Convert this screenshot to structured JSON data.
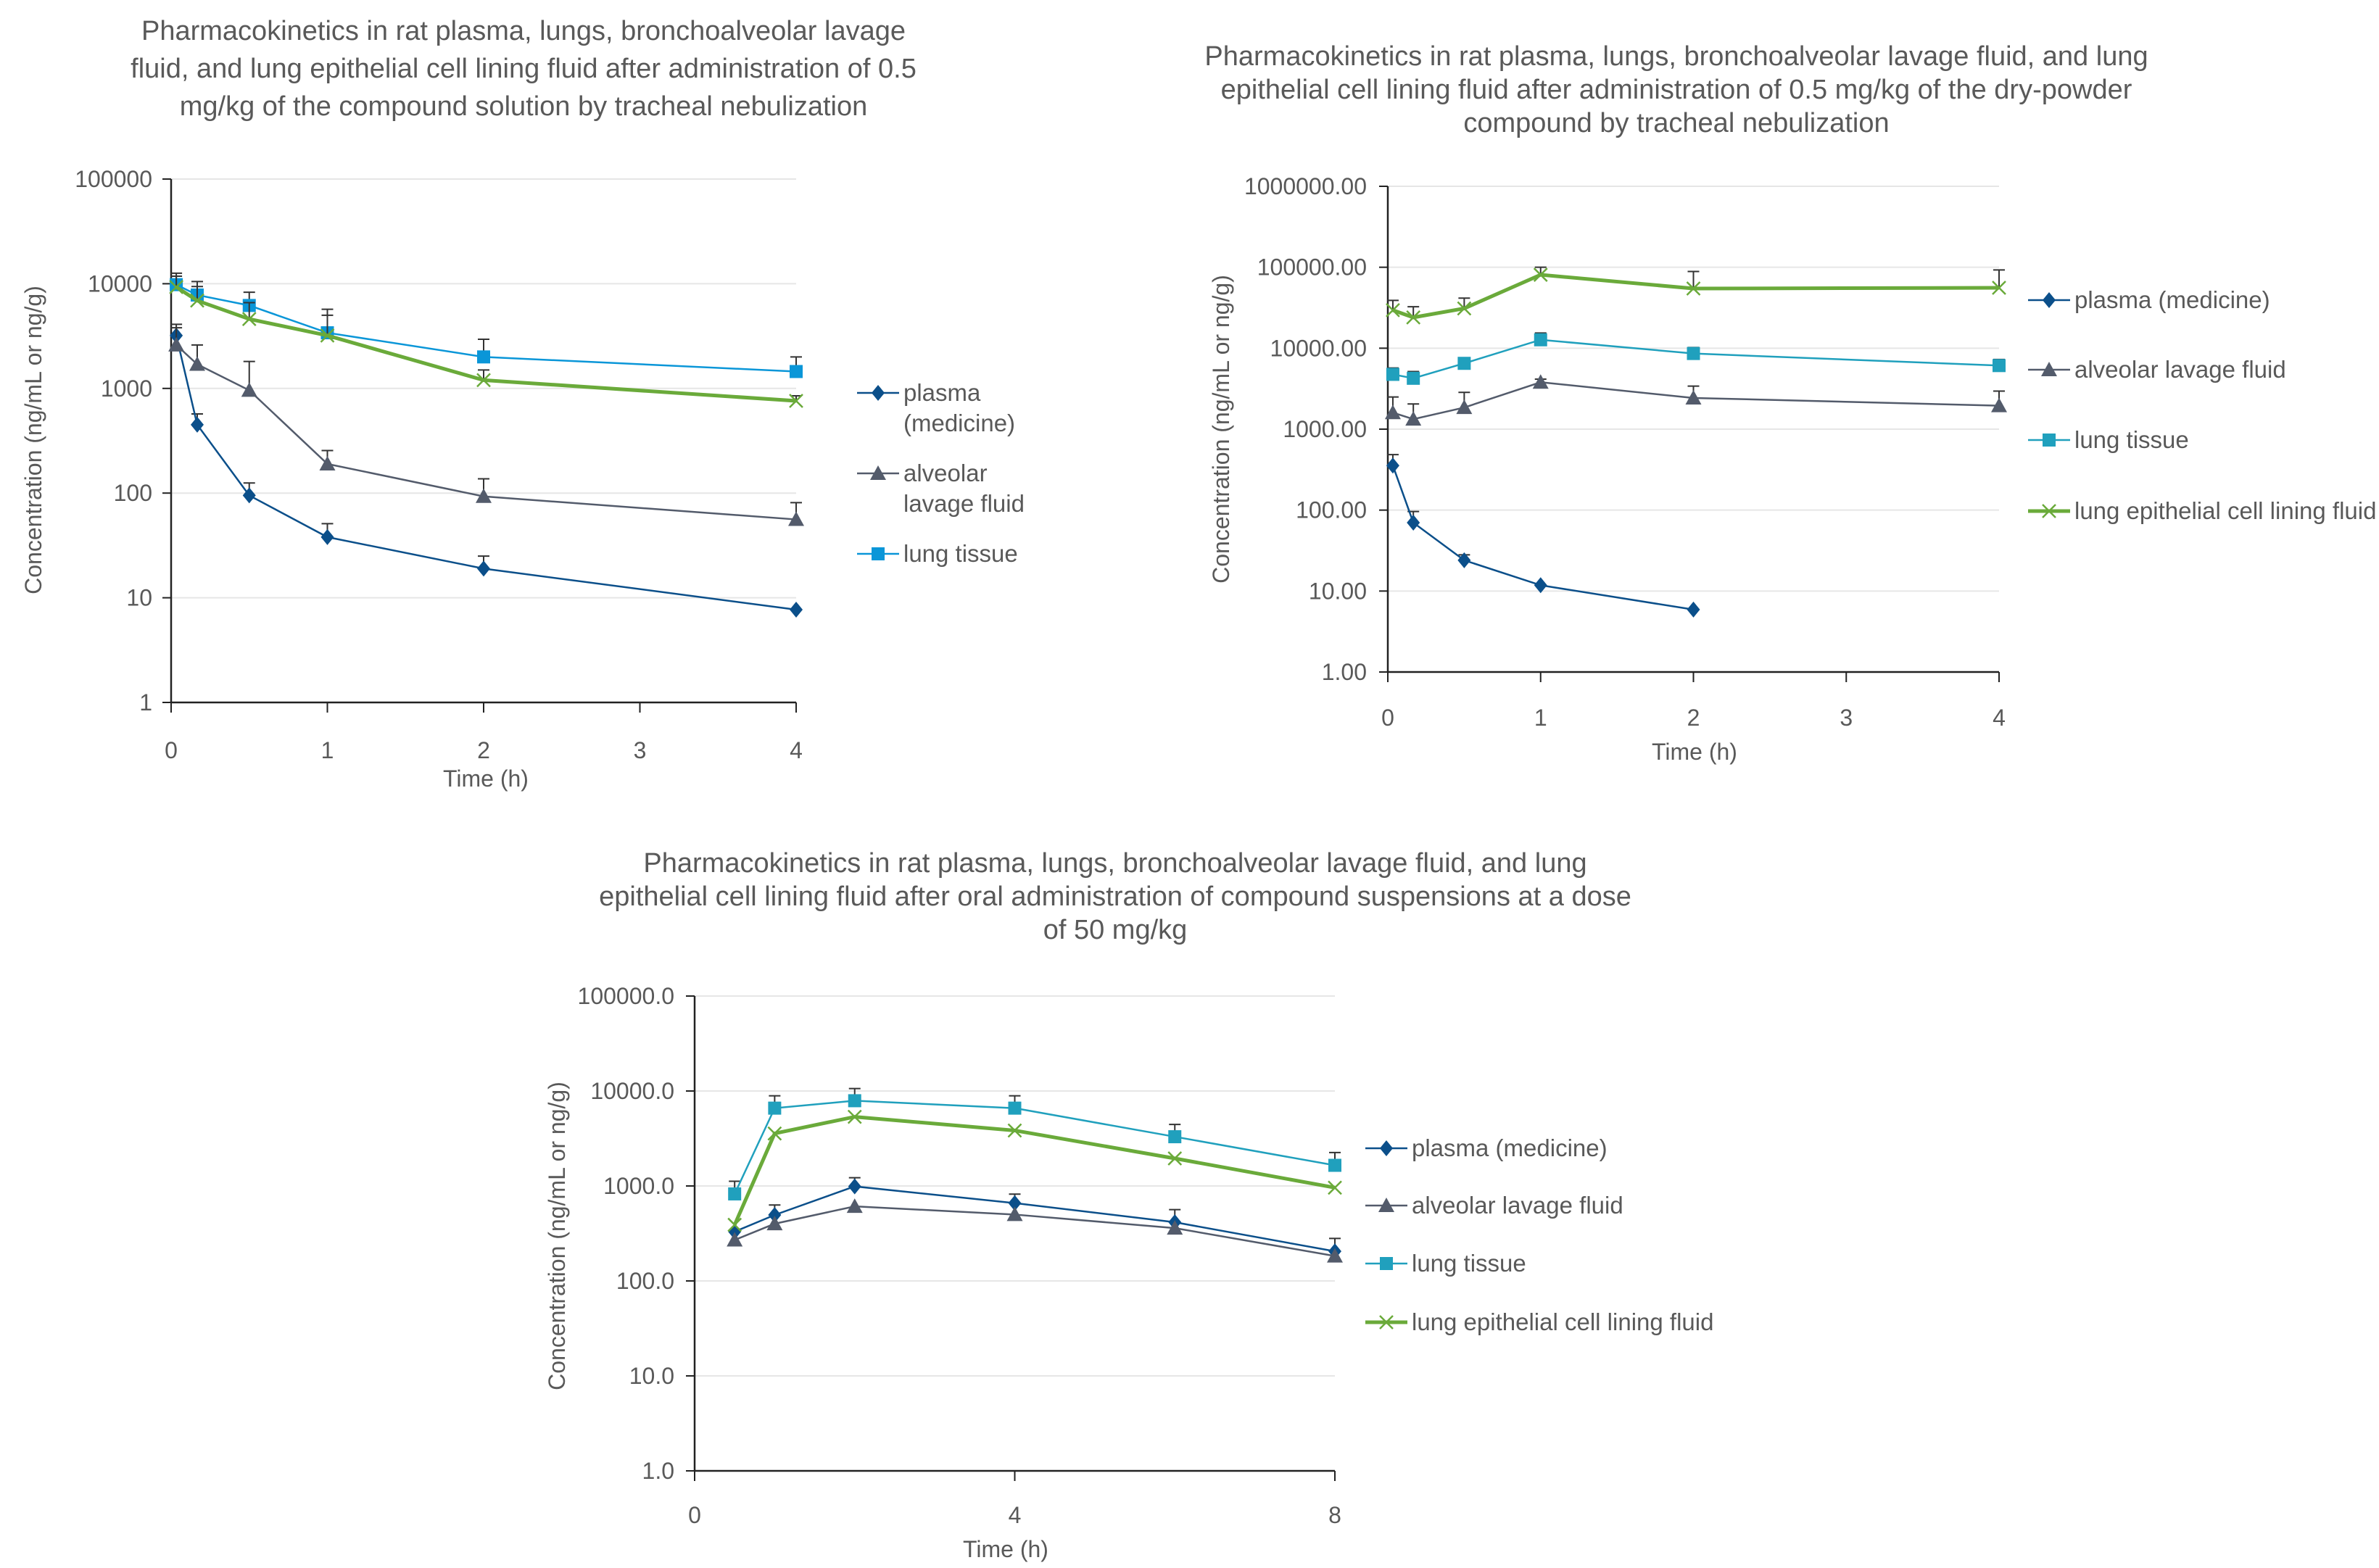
{
  "chart_data": [
    {
      "type": "line",
      "title_lines": [
        "Pharmacokinetics in rat plasma, lungs, bronchoalveolar lavage",
        "fluid, and lung epithelial cell lining fluid after administration of 0.5",
        "mg/kg of the compound solution by tracheal nebulization"
      ],
      "xlabel": "Time (h)",
      "ylabel": "Concentration (ng/mL or ng/g)",
      "xlim": [
        0,
        4
      ],
      "x_ticks": [
        "0",
        "1",
        "2",
        "3",
        "4"
      ],
      "x_tick_values": [
        0,
        1,
        2,
        3,
        4
      ],
      "ylim": [
        1,
        100000
      ],
      "y_scale": "log",
      "y_ticks": [
        "100000",
        "10000",
        "1000",
        "100",
        "10",
        "1"
      ],
      "grid": true,
      "legend_position": "right",
      "series": [
        {
          "name": "plasma (medicine)",
          "marker": "diamond",
          "color": "#0b4f8a",
          "x": [
            0.033,
            0.167,
            0.5,
            1,
            2,
            4
          ],
          "y": [
            3200,
            450,
            95,
            38,
            19,
            7.7
          ],
          "error": [
            900,
            120,
            30,
            13,
            6,
            0
          ]
        },
        {
          "name": "alveolar lavage fluid",
          "marker": "triangle",
          "color": "#535b6b",
          "x": [
            0.033,
            0.167,
            0.5,
            1,
            2,
            4
          ],
          "y": [
            2600,
            1700,
            960,
            190,
            93,
            56
          ],
          "error": [
            1200,
            900,
            850,
            65,
            44,
            25
          ]
        },
        {
          "name": "lung tissue",
          "marker": "square",
          "color": "#0a96d8",
          "x": [
            0.033,
            0.167,
            0.5,
            1,
            2,
            4
          ],
          "y": [
            9800,
            7800,
            6200,
            3400,
            2000,
            1450
          ],
          "error": [
            2800,
            2700,
            2100,
            2300,
            950,
            550
          ]
        },
        {
          "marker": "x",
          "color": "#6aaa3a",
          "x": [
            0.033,
            0.167,
            0.5,
            1,
            2,
            4
          ],
          "y": [
            9300,
            6900,
            4600,
            3200,
            1200,
            760
          ],
          "error": [
            2500,
            2500,
            2000,
            1800,
            300,
            90
          ]
        }
      ]
    },
    {
      "type": "line",
      "title_lines": [
        "Pharmacokinetics in rat plasma, lungs, bronchoalveolar lavage fluid, and lung",
        "epithelial cell lining fluid after administration of 0.5 mg/kg of the dry-powder",
        "compound by tracheal nebulization"
      ],
      "xlabel": "Time (h)",
      "ylabel": "Concentration (ng/mL or ng/g)",
      "xlim": [
        0,
        4
      ],
      "x_ticks": [
        "0",
        "1",
        "2",
        "3",
        "4"
      ],
      "x_tick_values": [
        0,
        1,
        2,
        3,
        4
      ],
      "ylim": [
        1,
        1000000
      ],
      "y_scale": "log",
      "y_ticks": [
        "1000000.00",
        "100000.00",
        "10000.00",
        "1000.00",
        "100.00",
        "10.00",
        "1.00"
      ],
      "grid": true,
      "legend_position": "right",
      "series": [
        {
          "name": "plasma (medicine)",
          "marker": "diamond",
          "color": "#0b4f8a",
          "x": [
            0.033,
            0.167,
            0.5,
            1,
            2
          ],
          "y": [
            355,
            70,
            24,
            11.8,
            5.9
          ],
          "error": [
            130,
            26,
            4,
            0,
            0
          ]
        },
        {
          "name": "alveolar lavage fluid",
          "marker": "triangle",
          "color": "#535b6b",
          "x": [
            0.033,
            0.167,
            0.5,
            1,
            2,
            4
          ],
          "y": [
            1600,
            1330,
            1850,
            3800,
            2430,
            1950
          ],
          "error": [
            900,
            720,
            1000,
            350,
            970,
            1000
          ]
        },
        {
          "name": "lung tissue",
          "marker": "square",
          "color": "#20a0bd",
          "x": [
            0.033,
            0.167,
            0.5,
            1,
            2,
            4
          ],
          "y": [
            4750,
            4250,
            6500,
            12700,
            8600,
            6100
          ],
          "error": [
            950,
            900,
            1100,
            2700,
            1600,
            1150
          ]
        },
        {
          "name": "lung epithelial cell lining fluid",
          "marker": "x",
          "color": "#6aaa3a",
          "x": [
            0.033,
            0.167,
            0.5,
            1,
            2,
            4
          ],
          "y": [
            29500,
            24000,
            31000,
            80700,
            54600,
            55700
          ],
          "error": [
            9500,
            8500,
            10600,
            19300,
            34000,
            37000
          ]
        }
      ]
    },
    {
      "type": "line",
      "title_lines": [
        "Pharmacokinetics in rat plasma, lungs, bronchoalveolar lavage fluid, and lung",
        "epithelial cell lining fluid after oral administration of compound suspensions at a dose",
        "of 50 mg/kg"
      ],
      "xlabel": "Time (h)",
      "ylabel": "Concentration (ng/mL or  ng/g)",
      "xlim": [
        0,
        8
      ],
      "x_ticks": [
        "0",
        "4",
        "8"
      ],
      "x_tick_values": [
        0,
        4,
        8
      ],
      "ylim": [
        1,
        100000
      ],
      "y_scale": "log",
      "y_ticks": [
        "100000.0",
        "10000.0",
        "1000.0",
        "100.0",
        "10.0",
        "1.0"
      ],
      "grid": true,
      "legend_position": "right",
      "series": [
        {
          "name": "plasma (medicine)",
          "marker": "diamond",
          "color": "#0b4f8a",
          "x": [
            0.5,
            1,
            2,
            4,
            6,
            8
          ],
          "y": [
            330,
            495,
            990,
            660,
            415,
            205
          ],
          "error": [
            0,
            135,
            230,
            160,
            148,
            75
          ]
        },
        {
          "name": "alveolar lavage fluid",
          "marker": "triangle",
          "color": "#535b6b",
          "x": [
            0.5,
            1,
            2,
            4,
            6,
            8
          ],
          "y": [
            270,
            400,
            610,
            500,
            360,
            183
          ],
          "error": [
            0,
            0,
            0,
            0,
            0,
            0
          ]
        },
        {
          "name": "lung tissue",
          "marker": "square",
          "color": "#20a0bd",
          "x": [
            0.5,
            1,
            2,
            4,
            6,
            8
          ],
          "y": [
            825,
            6600,
            7900,
            6600,
            3300,
            1650
          ],
          "error": [
            295,
            2300,
            2700,
            2300,
            1150,
            600
          ]
        },
        {
          "name": "lung epithelial cell lining fluid",
          "marker": "x",
          "color": "#6aaa3a",
          "x": [
            0.5,
            1,
            2,
            4,
            6,
            8
          ],
          "y": [
            390,
            3570,
            5350,
            3840,
            1950,
            960
          ],
          "error": [
            0,
            0,
            0,
            0,
            0,
            0
          ]
        }
      ]
    }
  ]
}
